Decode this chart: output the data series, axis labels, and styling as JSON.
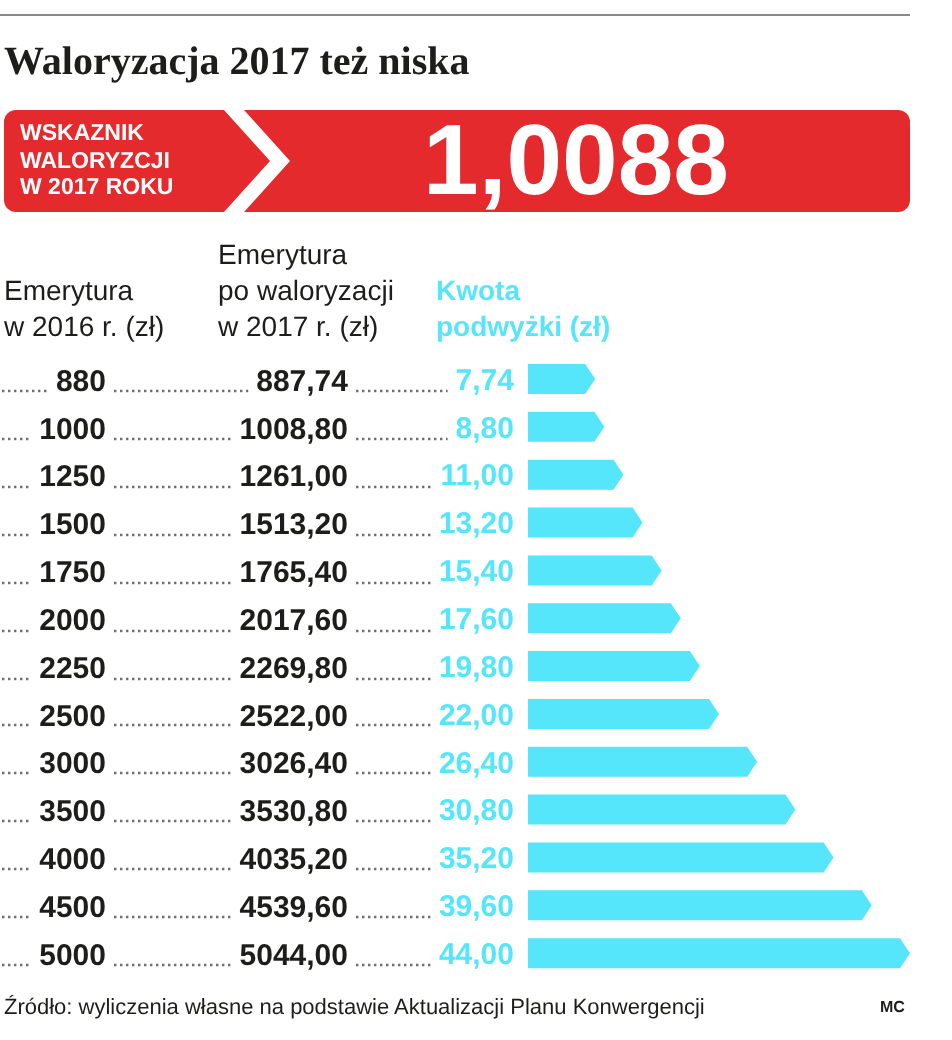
{
  "chart_data": {
    "type": "bar",
    "orientation": "horizontal",
    "title": "Waloryzacja 2017 też niska",
    "ylabel": "Emerytura w 2016 r. (zł)",
    "xlabel": "Kwota podwyżki (zł)",
    "categories": [
      "880",
      "1000",
      "1250",
      "1500",
      "1750",
      "2000",
      "2250",
      "2500",
      "3000",
      "3500",
      "4000",
      "4500",
      "5000"
    ],
    "values": [
      7.74,
      8.8,
      11.0,
      13.2,
      15.4,
      17.6,
      19.8,
      22.0,
      26.4,
      30.8,
      35.2,
      39.6,
      44.0
    ],
    "value_labels": [
      "7,74",
      "8,80",
      "11,00",
      "13,20",
      "15,40",
      "17,60",
      "19,80",
      "22,00",
      "26,40",
      "30,80",
      "35,20",
      "39,60",
      "44,00"
    ],
    "color": "#55e6fc",
    "tick_labels": "y",
    "annotations": [
      "WSKAZNIK WALORYZCJI W 2017 ROKU",
      "1,0088",
      "Emerytura po waloryzacji w 2017 r. (zł)",
      "887,74",
      "1008,80",
      "1261,00",
      "1513,20",
      "1765,40",
      "2017,60",
      "2269,80",
      "2522,00",
      "3026,40",
      "3530,80",
      "4035,20",
      "4539,60",
      "5044,00",
      "Źródło: wyliczenia własne na podstawie Aktualizacji Planu Konwergencji",
      "MC"
    ]
  }
}
